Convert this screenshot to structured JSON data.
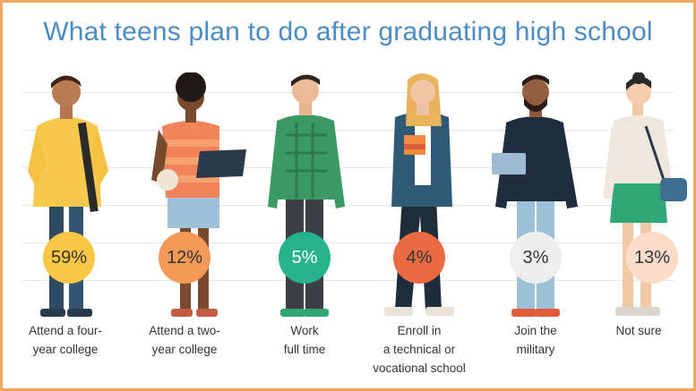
{
  "chart_data": {
    "type": "bar",
    "title": "What teens plan to do after graduating high school",
    "categories": [
      {
        "lines": [
          "Attend a four-",
          "year college"
        ]
      },
      {
        "lines": [
          "Attend a two-",
          "year college"
        ]
      },
      {
        "lines": [
          "Work",
          "full time"
        ]
      },
      {
        "lines": [
          "Enroll in",
          "a technical or",
          "vocational school"
        ]
      },
      {
        "lines": [
          "Join the",
          "military"
        ]
      },
      {
        "lines": [
          "Not sure"
        ]
      }
    ],
    "values": [
      59,
      12,
      5,
      4,
      3,
      13
    ],
    "value_labels": [
      "59%",
      "12%",
      "5%",
      "4%",
      "3%",
      "13%"
    ],
    "badge_colors": [
      "#f9c744",
      "#f39a58",
      "#27b38a",
      "#ea6a44",
      "#eeeeee",
      "#f9ddc8"
    ],
    "unit": "%"
  }
}
